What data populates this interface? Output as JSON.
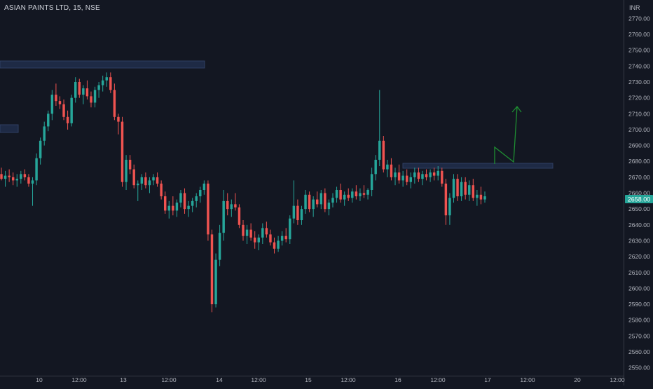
{
  "header": {
    "symbol": "ASIAN PAINTS LTD, 15, NSE",
    "currency": "INR"
  },
  "colors": {
    "background": "#131722",
    "up": "#26a69a",
    "down": "#ef5350",
    "zone_fill": "#1e2a45",
    "zone_border": "#2f3f63",
    "arrow": "#1e8e32",
    "price_label_bg": "#26a69a",
    "axis_text": "#b2b5be"
  },
  "chart_data": {
    "type": "candlestick",
    "y_axis": {
      "min": 2545,
      "max": 2779,
      "ticks": [
        2550,
        2560,
        2570,
        2580,
        2590,
        2600,
        2610,
        2620,
        2630,
        2640,
        2650,
        2660,
        2670,
        2680,
        2690,
        2700,
        2710,
        2720,
        2730,
        2740,
        2750,
        2760,
        2770
      ],
      "tick_labels": [
        "2550.00",
        "2560.00",
        "2570.00",
        "2580.00",
        "2590.00",
        "2600.00",
        "2610.00",
        "2620.00",
        "2630.00",
        "2640.00",
        "2650.00",
        "2660.00",
        "2670.00",
        "2680.00",
        "2690.00",
        "2700.00",
        "2710.00",
        "2720.00",
        "2730.00",
        "2740.00",
        "2750.00",
        "2760.00",
        "2770.00"
      ]
    },
    "x_axis": {
      "labels": [
        "10",
        "12:00",
        "13",
        "12:00",
        "14",
        "12:00",
        "15",
        "12:00",
        "16",
        "12:00",
        "17",
        "12:00",
        "20",
        "12:00"
      ]
    },
    "last_price": "2658.00",
    "candles_ohlc": [
      [
        2672,
        2676,
        2668,
        2669
      ],
      [
        2669,
        2674,
        2664,
        2671
      ],
      [
        2671,
        2675,
        2667,
        2670
      ],
      [
        2670,
        2673,
        2665,
        2668
      ],
      [
        2668,
        2672,
        2664,
        2669
      ],
      [
        2669,
        2674,
        2666,
        2672
      ],
      [
        2672,
        2675,
        2668,
        2670
      ],
      [
        2670,
        2672,
        2664,
        2666
      ],
      [
        2666,
        2670,
        2652,
        2668
      ],
      [
        2668,
        2685,
        2665,
        2682
      ],
      [
        2682,
        2695,
        2678,
        2693
      ],
      [
        2693,
        2705,
        2690,
        2702
      ],
      [
        2702,
        2712,
        2699,
        2710
      ],
      [
        2710,
        2725,
        2706,
        2722
      ],
      [
        2722,
        2729,
        2715,
        2718
      ],
      [
        2718,
        2721,
        2713,
        2716
      ],
      [
        2716,
        2719,
        2706,
        2708
      ],
      [
        2708,
        2712,
        2700,
        2704
      ],
      [
        2704,
        2722,
        2702,
        2720
      ],
      [
        2720,
        2733,
        2717,
        2730
      ],
      [
        2730,
        2732,
        2720,
        2722
      ],
      [
        2722,
        2728,
        2716,
        2726
      ],
      [
        2726,
        2731,
        2719,
        2721
      ],
      [
        2721,
        2724,
        2714,
        2717
      ],
      [
        2717,
        2727,
        2714,
        2725
      ],
      [
        2725,
        2730,
        2720,
        2728
      ],
      [
        2728,
        2734,
        2724,
        2731
      ],
      [
        2731,
        2736,
        2727,
        2733
      ],
      [
        2733,
        2736,
        2723,
        2725
      ],
      [
        2725,
        2729,
        2706,
        2708
      ],
      [
        2708,
        2710,
        2697,
        2705
      ],
      [
        2705,
        2708,
        2664,
        2667
      ],
      [
        2667,
        2684,
        2662,
        2681
      ],
      [
        2681,
        2684,
        2672,
        2675
      ],
      [
        2675,
        2678,
        2663,
        2665
      ],
      [
        2665,
        2668,
        2655,
        2666
      ],
      [
        2666,
        2672,
        2662,
        2670
      ],
      [
        2670,
        2673,
        2663,
        2665
      ],
      [
        2665,
        2670,
        2660,
        2668
      ],
      [
        2668,
        2672,
        2665,
        2670
      ],
      [
        2670,
        2673,
        2664,
        2666
      ],
      [
        2666,
        2668,
        2656,
        2658
      ],
      [
        2658,
        2661,
        2647,
        2649
      ],
      [
        2649,
        2655,
        2644,
        2652
      ],
      [
        2652,
        2658,
        2646,
        2649
      ],
      [
        2649,
        2656,
        2645,
        2654
      ],
      [
        2654,
        2662,
        2651,
        2660
      ],
      [
        2660,
        2663,
        2647,
        2650
      ],
      [
        2650,
        2655,
        2645,
        2652
      ],
      [
        2652,
        2657,
        2648,
        2655
      ],
      [
        2655,
        2660,
        2651,
        2658
      ],
      [
        2658,
        2664,
        2654,
        2662
      ],
      [
        2662,
        2668,
        2659,
        2666
      ],
      [
        2666,
        2668,
        2630,
        2634
      ],
      [
        2634,
        2637,
        2585,
        2590
      ],
      [
        2590,
        2622,
        2588,
        2618
      ],
      [
        2618,
        2640,
        2614,
        2635
      ],
      [
        2635,
        2662,
        2630,
        2655
      ],
      [
        2655,
        2660,
        2646,
        2650
      ],
      [
        2650,
        2656,
        2645,
        2653
      ],
      [
        2653,
        2660,
        2649,
        2651
      ],
      [
        2651,
        2653,
        2638,
        2640
      ],
      [
        2640,
        2643,
        2630,
        2633
      ],
      [
        2633,
        2640,
        2628,
        2637
      ],
      [
        2637,
        2641,
        2630,
        2632
      ],
      [
        2632,
        2636,
        2625,
        2629
      ],
      [
        2629,
        2634,
        2624,
        2632
      ],
      [
        2632,
        2641,
        2628,
        2638
      ],
      [
        2638,
        2642,
        2632,
        2634
      ],
      [
        2634,
        2637,
        2627,
        2629
      ],
      [
        2629,
        2632,
        2622,
        2625
      ],
      [
        2625,
        2633,
        2623,
        2630
      ],
      [
        2630,
        2636,
        2627,
        2633
      ],
      [
        2633,
        2638,
        2629,
        2631
      ],
      [
        2631,
        2646,
        2628,
        2644
      ],
      [
        2644,
        2668,
        2641,
        2652
      ],
      [
        2652,
        2656,
        2640,
        2643
      ],
      [
        2643,
        2652,
        2640,
        2650
      ],
      [
        2650,
        2662,
        2647,
        2659
      ],
      [
        2659,
        2661,
        2648,
        2650
      ],
      [
        2650,
        2658,
        2645,
        2656
      ],
      [
        2656,
        2661,
        2651,
        2653
      ],
      [
        2653,
        2662,
        2650,
        2660
      ],
      [
        2660,
        2663,
        2648,
        2650
      ],
      [
        2650,
        2656,
        2646,
        2654
      ],
      [
        2654,
        2660,
        2651,
        2657
      ],
      [
        2657,
        2664,
        2654,
        2662
      ],
      [
        2662,
        2666,
        2654,
        2656
      ],
      [
        2656,
        2661,
        2652,
        2659
      ],
      [
        2659,
        2663,
        2655,
        2657
      ],
      [
        2657,
        2663,
        2654,
        2661
      ],
      [
        2661,
        2665,
        2656,
        2658
      ],
      [
        2658,
        2663,
        2655,
        2660
      ],
      [
        2660,
        2665,
        2657,
        2659
      ],
      [
        2659,
        2663,
        2656,
        2662
      ],
      [
        2662,
        2676,
        2658,
        2672
      ],
      [
        2672,
        2684,
        2668,
        2681
      ],
      [
        2681,
        2725,
        2677,
        2693
      ],
      [
        2693,
        2696,
        2673,
        2675
      ],
      [
        2675,
        2681,
        2670,
        2678
      ],
      [
        2678,
        2682,
        2668,
        2670
      ],
      [
        2670,
        2676,
        2665,
        2673
      ],
      [
        2673,
        2678,
        2666,
        2668
      ],
      [
        2668,
        2674,
        2664,
        2671
      ],
      [
        2671,
        2675,
        2665,
        2667
      ],
      [
        2667,
        2673,
        2663,
        2670
      ],
      [
        2670,
        2676,
        2666,
        2673
      ],
      [
        2673,
        2676,
        2667,
        2669
      ],
      [
        2669,
        2674,
        2665,
        2672
      ],
      [
        2672,
        2675,
        2668,
        2670
      ],
      [
        2670,
        2675,
        2667,
        2673
      ],
      [
        2673,
        2676,
        2668,
        2671
      ],
      [
        2671,
        2677,
        2668,
        2674
      ],
      [
        2674,
        2676,
        2664,
        2666
      ],
      [
        2666,
        2669,
        2640,
        2646
      ],
      [
        2646,
        2660,
        2640,
        2657
      ],
      [
        2657,
        2672,
        2654,
        2669
      ],
      [
        2669,
        2672,
        2655,
        2658
      ],
      [
        2658,
        2670,
        2655,
        2667
      ],
      [
        2667,
        2670,
        2656,
        2659
      ],
      [
        2659,
        2668,
        2655,
        2665
      ],
      [
        2665,
        2669,
        2655,
        2657
      ],
      [
        2657,
        2662,
        2652,
        2659
      ],
      [
        2659,
        2664,
        2653,
        2656
      ],
      [
        2656,
        2661,
        2654,
        2658
      ]
    ]
  }
}
